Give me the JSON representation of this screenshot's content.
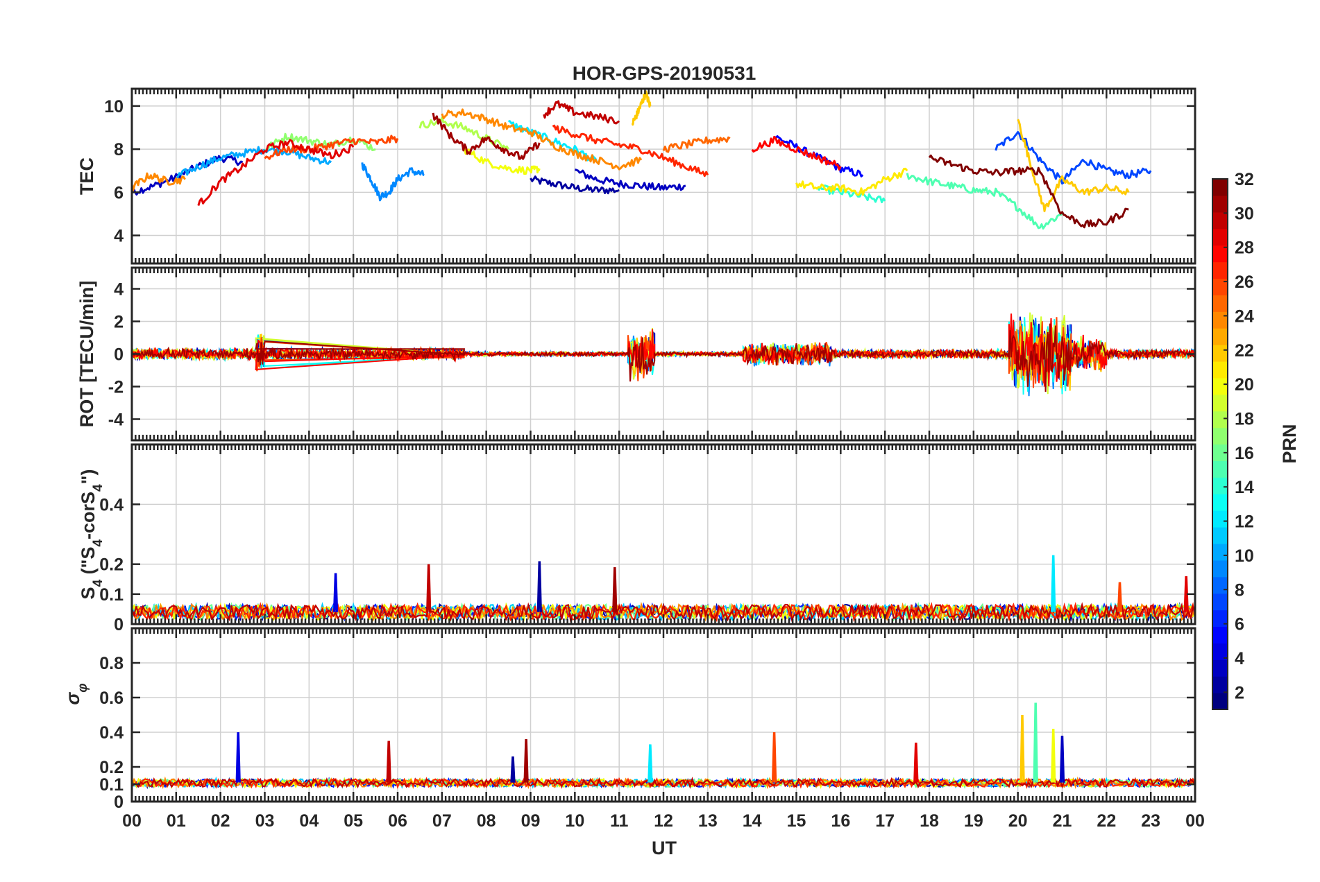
{
  "title": "HOR-GPS-20190531",
  "chart_data": [
    {
      "type": "line",
      "ylabel": "TEC",
      "ylim": [
        2.7,
        10.8
      ],
      "yticks": [
        4,
        6,
        8,
        10
      ],
      "ytick_labels": [
        "4",
        "6",
        "8",
        "10"
      ],
      "series": [
        {
          "prn": 2,
          "x": [
            9.0,
            9.5,
            10.0,
            10.5,
            11.0
          ],
          "y": [
            6.6,
            6.4,
            6.2,
            6.1,
            6.1
          ]
        },
        {
          "prn": 3,
          "x": [
            0.0,
            0.5,
            1.0,
            1.5,
            2.0,
            2.5
          ],
          "y": [
            6.0,
            6.3,
            6.7,
            7.2,
            7.6,
            7.4
          ]
        },
        {
          "prn": 3,
          "x": [
            10.0,
            10.5,
            11.0,
            11.5,
            12.0,
            12.5
          ],
          "y": [
            7.0,
            6.6,
            6.4,
            6.3,
            6.2,
            6.3
          ]
        },
        {
          "prn": 5,
          "x": [
            14.5,
            15.0,
            15.5,
            16.0,
            16.5
          ],
          "y": [
            8.6,
            8.1,
            7.6,
            7.1,
            6.8
          ]
        },
        {
          "prn": 7,
          "x": [
            19.5,
            20.0,
            20.5,
            21.0,
            21.5,
            22.0,
            22.5,
            23.0
          ],
          "y": [
            8.0,
            8.8,
            7.5,
            6.5,
            7.5,
            7.0,
            6.8,
            7.0
          ]
        },
        {
          "prn": 9,
          "x": [
            5.2,
            5.4,
            5.6,
            5.8,
            6.0,
            6.3,
            6.6
          ],
          "y": [
            7.3,
            6.6,
            5.8,
            6.0,
            6.6,
            7.0,
            6.8
          ]
        },
        {
          "prn": 10,
          "x": [
            1.0,
            1.5,
            2.0,
            2.5,
            3.0,
            3.5,
            4.0,
            4.5
          ],
          "y": [
            6.7,
            7.2,
            7.6,
            7.8,
            8.0,
            7.9,
            7.6,
            7.4
          ]
        },
        {
          "prn": 12,
          "x": [
            8.5,
            9.0,
            9.5,
            10.0,
            10.5
          ],
          "y": [
            9.2,
            8.8,
            8.4,
            8.0,
            7.4
          ]
        },
        {
          "prn": 14,
          "x": [
            15.5,
            16.0,
            16.5,
            17.0
          ],
          "y": [
            6.2,
            6.0,
            5.8,
            5.6
          ]
        },
        {
          "prn": 15,
          "x": [
            17.5,
            18.0,
            18.5,
            19.0,
            19.5,
            20.0,
            20.5,
            21.0
          ],
          "y": [
            6.8,
            6.5,
            6.3,
            6.1,
            6.0,
            5.3,
            4.4,
            5.0
          ]
        },
        {
          "prn": 17,
          "x": [
            3.0,
            3.5,
            4.0,
            4.5,
            5.0,
            5.5
          ],
          "y": [
            8.0,
            8.6,
            8.4,
            8.2,
            8.5,
            8.0
          ]
        },
        {
          "prn": 18,
          "x": [
            6.5,
            7.0,
            7.5,
            8.0,
            8.5
          ],
          "y": [
            9.1,
            9.3,
            9.0,
            8.5,
            8.0
          ]
        },
        {
          "prn": 20,
          "x": [
            7.5,
            8.0,
            8.5,
            9.0,
            9.2
          ],
          "y": [
            8.0,
            7.4,
            7.1,
            7.0,
            7.1
          ]
        },
        {
          "prn": 21,
          "x": [
            15.0,
            15.5,
            16.0,
            16.5,
            17.0,
            17.5
          ],
          "y": [
            6.4,
            6.2,
            6.2,
            6.0,
            6.6,
            7.0
          ]
        },
        {
          "prn": 22,
          "x": [
            11.3,
            11.4,
            11.5,
            11.6,
            11.7
          ],
          "y": [
            9.2,
            9.6,
            10.1,
            10.6,
            10.0
          ]
        },
        {
          "prn": 22,
          "x": [
            20.0,
            20.3,
            20.6,
            21.0,
            21.5,
            22.0,
            22.5
          ],
          "y": [
            9.4,
            7.2,
            5.2,
            6.6,
            6.0,
            6.2,
            6.0
          ]
        },
        {
          "prn": 24,
          "x": [
            0.0,
            0.4,
            0.8,
            1.2
          ],
          "y": [
            6.2,
            6.8,
            6.5,
            6.6
          ]
        },
        {
          "prn": 24,
          "x": [
            7.0,
            7.5,
            8.0,
            8.5,
            9.0,
            9.5,
            10.0,
            10.5,
            11.0,
            11.5
          ],
          "y": [
            9.6,
            9.7,
            9.4,
            9.0,
            8.8,
            8.2,
            7.8,
            7.5,
            7.2,
            7.5
          ]
        },
        {
          "prn": 25,
          "x": [
            12.0,
            12.5,
            13.0,
            13.5
          ],
          "y": [
            8.0,
            8.2,
            8.4,
            8.5
          ]
        },
        {
          "prn": 26,
          "x": [
            3.0,
            3.5,
            4.0,
            4.5,
            5.0,
            5.5,
            6.0
          ],
          "y": [
            7.6,
            8.0,
            8.0,
            8.2,
            8.4,
            8.3,
            8.5
          ]
        },
        {
          "prn": 27,
          "x": [
            9.5,
            10.0,
            10.5,
            11.0,
            11.5,
            12.0,
            12.5,
            13.0
          ],
          "y": [
            9.0,
            8.7,
            8.4,
            8.2,
            8.0,
            7.6,
            7.2,
            6.8
          ]
        },
        {
          "prn": 28,
          "x": [
            14.0,
            14.5,
            15.0,
            15.5,
            16.0
          ],
          "y": [
            8.0,
            8.4,
            8.0,
            7.6,
            7.2
          ]
        },
        {
          "prn": 29,
          "x": [
            1.5,
            2.0,
            2.5,
            3.0,
            3.5,
            4.0,
            4.5,
            5.0
          ],
          "y": [
            5.4,
            6.5,
            7.2,
            8.0,
            8.3,
            8.0,
            7.7,
            8.1
          ]
        },
        {
          "prn": 30,
          "x": [
            9.3,
            9.6,
            10.0,
            10.5,
            11.0
          ],
          "y": [
            9.6,
            10.1,
            9.7,
            9.5,
            9.3
          ]
        },
        {
          "prn": 31,
          "x": [
            6.8,
            7.2,
            7.6,
            8.0,
            8.4,
            8.8,
            9.2
          ],
          "y": [
            9.6,
            8.6,
            7.9,
            8.5,
            8.0,
            7.6,
            8.3
          ]
        },
        {
          "prn": 32,
          "x": [
            18.0,
            18.5,
            19.0,
            19.5,
            20.0,
            20.5,
            21.0,
            21.5,
            22.0,
            22.5
          ],
          "y": [
            7.6,
            7.3,
            7.0,
            6.9,
            7.0,
            7.0,
            5.0,
            4.5,
            4.6,
            5.2
          ]
        }
      ]
    },
    {
      "type": "line",
      "ylabel": "ROT [TECU/min]",
      "ylim": [
        -5.3,
        5.3
      ],
      "yticks": [
        -4,
        -2,
        0,
        2,
        4
      ],
      "ytick_labels": [
        "-4",
        "-2",
        "0",
        "2",
        "4"
      ],
      "noise_segments": [
        {
          "x0": 0.0,
          "x1": 7.5,
          "amp": 0.4
        },
        {
          "x0": 2.8,
          "x1": 3.0,
          "amp": 1.5
        },
        {
          "x0": 7.5,
          "x1": 11.2,
          "amp": 0.15
        },
        {
          "x0": 11.2,
          "x1": 11.8,
          "amp": 1.8
        },
        {
          "x0": 11.8,
          "x1": 13.8,
          "amp": 0.15
        },
        {
          "x0": 13.8,
          "x1": 15.8,
          "amp": 0.8
        },
        {
          "x0": 15.8,
          "x1": 19.8,
          "amp": 0.3
        },
        {
          "x0": 19.8,
          "x1": 21.2,
          "amp": 2.8
        },
        {
          "x0": 21.2,
          "x1": 22.0,
          "amp": 1.2
        },
        {
          "x0": 22.0,
          "x1": 24.0,
          "amp": 0.3
        }
      ]
    },
    {
      "type": "line",
      "ylabel": "S4 (\"S4-corS4\")",
      "ylim": [
        0,
        0.6
      ],
      "yticks": [
        0,
        0.1,
        0.2,
        0.4
      ],
      "ytick_labels": [
        "0",
        "0.1",
        "0.2",
        "0.4"
      ],
      "spikes": [
        {
          "x": 4.6,
          "y": 0.17
        },
        {
          "x": 6.7,
          "y": 0.2
        },
        {
          "x": 9.2,
          "y": 0.21
        },
        {
          "x": 10.9,
          "y": 0.19
        },
        {
          "x": 20.8,
          "y": 0.23
        },
        {
          "x": 22.3,
          "y": 0.14
        },
        {
          "x": 23.8,
          "y": 0.16
        }
      ]
    },
    {
      "type": "line",
      "ylabel": "σφ",
      "ylim": [
        0,
        1
      ],
      "yticks": [
        0,
        0.1,
        0.2,
        0.4,
        0.6,
        0.8
      ],
      "ytick_labels": [
        "0",
        "0.1",
        "0.2",
        "0.4",
        "0.6",
        "0.8"
      ],
      "spikes": [
        {
          "x": 2.4,
          "y": 0.4
        },
        {
          "x": 5.8,
          "y": 0.35
        },
        {
          "x": 8.6,
          "y": 0.26
        },
        {
          "x": 8.9,
          "y": 0.36
        },
        {
          "x": 11.7,
          "y": 0.33
        },
        {
          "x": 14.5,
          "y": 0.4
        },
        {
          "x": 17.7,
          "y": 0.34
        },
        {
          "x": 20.1,
          "y": 0.5
        },
        {
          "x": 20.4,
          "y": 0.57
        },
        {
          "x": 20.8,
          "y": 0.42
        },
        {
          "x": 21.0,
          "y": 0.38
        }
      ]
    }
  ],
  "xaxis": {
    "label": "UT",
    "xlim": [
      0,
      24
    ],
    "tick_labels": [
      "00",
      "01",
      "02",
      "03",
      "04",
      "05",
      "06",
      "07",
      "08",
      "09",
      "10",
      "11",
      "12",
      "13",
      "14",
      "15",
      "16",
      "17",
      "18",
      "19",
      "20",
      "21",
      "22",
      "23",
      "00"
    ]
  },
  "colorbar": {
    "label": "PRN",
    "range": [
      1,
      32
    ],
    "tick_labels": [
      "2",
      "4",
      "6",
      "8",
      "10",
      "12",
      "14",
      "16",
      "18",
      "20",
      "22",
      "24",
      "26",
      "28",
      "30",
      "32"
    ],
    "colormap": "jet"
  }
}
